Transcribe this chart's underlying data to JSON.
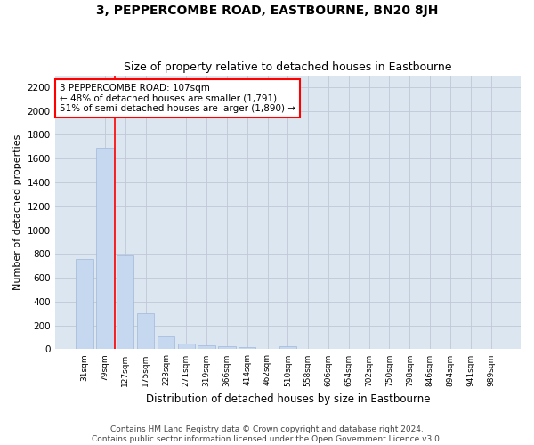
{
  "title": "3, PEPPERCOMBE ROAD, EASTBOURNE, BN20 8JH",
  "subtitle": "Size of property relative to detached houses in Eastbourne",
  "xlabel": "Distribution of detached houses by size in Eastbourne",
  "ylabel": "Number of detached properties",
  "categories": [
    "31sqm",
    "79sqm",
    "127sqm",
    "175sqm",
    "223sqm",
    "271sqm",
    "319sqm",
    "366sqm",
    "414sqm",
    "462sqm",
    "510sqm",
    "558sqm",
    "606sqm",
    "654sqm",
    "702sqm",
    "750sqm",
    "798sqm",
    "846sqm",
    "894sqm",
    "941sqm",
    "989sqm"
  ],
  "values": [
    760,
    1690,
    790,
    300,
    110,
    45,
    32,
    27,
    20,
    0,
    22,
    0,
    0,
    0,
    0,
    0,
    0,
    0,
    0,
    0,
    0
  ],
  "bar_color": "#c5d8f0",
  "bar_edgecolor": "#a0b8d8",
  "property_line_color": "red",
  "annotation_text": "3 PEPPERCOMBE ROAD: 107sqm\n← 48% of detached houses are smaller (1,791)\n51% of semi-detached houses are larger (1,890) →",
  "annotation_box_color": "white",
  "annotation_box_edgecolor": "red",
  "ylim": [
    0,
    2300
  ],
  "yticks": [
    0,
    200,
    400,
    600,
    800,
    1000,
    1200,
    1400,
    1600,
    1800,
    2000,
    2200
  ],
  "grid_color": "#c0c8d8",
  "background_color": "#dce6f0",
  "footer_line1": "Contains HM Land Registry data © Crown copyright and database right 2024.",
  "footer_line2": "Contains public sector information licensed under the Open Government Licence v3.0.",
  "title_fontsize": 10,
  "subtitle_fontsize": 9,
  "annotation_fontsize": 7.5,
  "ylabel_fontsize": 8,
  "xlabel_fontsize": 8.5,
  "footer_fontsize": 6.5
}
